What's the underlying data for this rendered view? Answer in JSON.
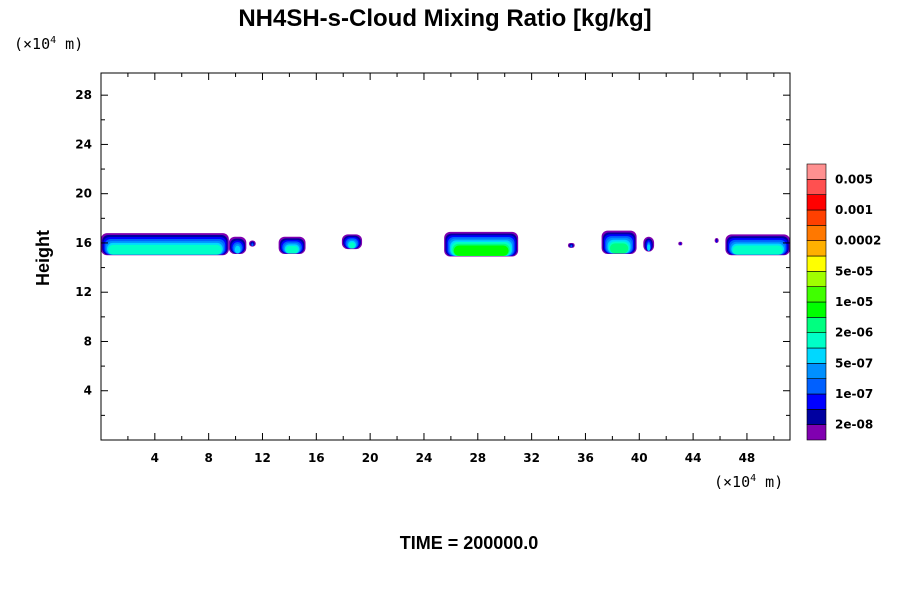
{
  "chart_data": {
    "type": "heatmap",
    "title": "NH4SH-s-Cloud Mixing Ratio [kg/kg]",
    "ylabel": "Height",
    "x_unit": {
      "prefix": "(×10",
      "exponent": "4",
      "suffix": " m)"
    },
    "y_unit": {
      "prefix": "(×10",
      "exponent": "4",
      "suffix": " m)"
    },
    "xlim": [
      0,
      51.2
    ],
    "ylim": [
      0,
      29.8
    ],
    "x_ticks": [
      4,
      8,
      12,
      16,
      20,
      24,
      28,
      32,
      36,
      40,
      44,
      48
    ],
    "x_tick_labels": [
      "4",
      "8",
      "12",
      "16",
      "20",
      "24",
      "28",
      "32",
      "36",
      "40",
      "44",
      "48"
    ],
    "y_ticks": [
      4,
      8,
      12,
      16,
      20,
      24,
      28
    ],
    "y_tick_labels": [
      "4",
      "8",
      "12",
      "16",
      "20",
      "24",
      "28"
    ],
    "time_label": "TIME = 200000.0",
    "colorbar": {
      "colors": [
        "#8000b0",
        "#0000a0",
        "#0000ff",
        "#0060ff",
        "#0090ff",
        "#00d8ff",
        "#00ffc8",
        "#00ff80",
        "#00ff00",
        "#40ff00",
        "#a0ff00",
        "#ffff00",
        "#ffb000",
        "#ff7800",
        "#ff4000",
        "#ff0000",
        "#ff5050",
        "#ff9090"
      ],
      "labels": [
        "2e-08",
        "1e-07",
        "5e-07",
        "2e-06",
        "1e-05",
        "5e-05",
        "0.0002",
        "0.001",
        "0.005"
      ]
    },
    "cloud_layers": [
      {
        "x_start": 0,
        "x_end": 9.5,
        "z_bottom": 15.0,
        "z_top": 16.8,
        "max_level": 6
      },
      {
        "x_start": 9.5,
        "x_end": 10.8,
        "z_bottom": 15.1,
        "z_top": 16.5,
        "max_level": 5
      },
      {
        "x_start": 11.0,
        "x_end": 11.5,
        "z_bottom": 15.7,
        "z_top": 16.2,
        "max_level": 3
      },
      {
        "x_start": 13.2,
        "x_end": 15.2,
        "z_bottom": 15.1,
        "z_top": 16.5,
        "max_level": 6
      },
      {
        "x_start": 17.9,
        "x_end": 19.4,
        "z_bottom": 15.5,
        "z_top": 16.7,
        "max_level": 6
      },
      {
        "x_start": 25.5,
        "x_end": 31.0,
        "z_bottom": 14.9,
        "z_top": 16.9,
        "max_level": 8
      },
      {
        "x_start": 34.7,
        "x_end": 35.2,
        "z_bottom": 15.6,
        "z_top": 16.0,
        "max_level": 3
      },
      {
        "x_start": 37.2,
        "x_end": 39.8,
        "z_bottom": 15.1,
        "z_top": 17.0,
        "max_level": 7
      },
      {
        "x_start": 40.3,
        "x_end": 41.1,
        "z_bottom": 15.3,
        "z_top": 16.5,
        "max_level": 5
      },
      {
        "x_start": 42.9,
        "x_end": 43.2,
        "z_bottom": 15.8,
        "z_top": 16.1,
        "max_level": 2
      },
      {
        "x_start": 45.6,
        "x_end": 45.9,
        "z_bottom": 16.0,
        "z_top": 16.4,
        "max_level": 2
      },
      {
        "x_start": 46.4,
        "x_end": 51.2,
        "z_bottom": 15.0,
        "z_top": 16.7,
        "max_level": 6
      }
    ]
  }
}
